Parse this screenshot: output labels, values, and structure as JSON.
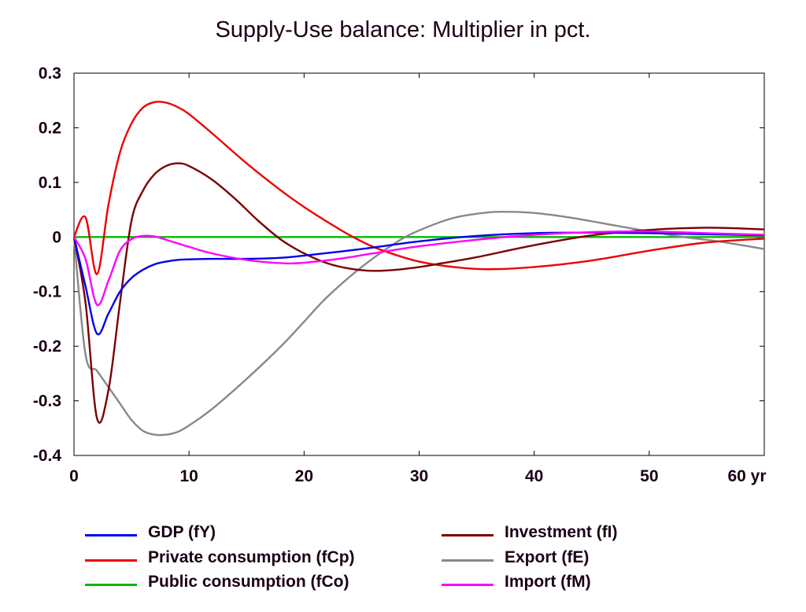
{
  "chart_data": {
    "type": "line",
    "title": "Supply-Use balance: Multiplier in pct.",
    "xlabel": "",
    "ylabel": "",
    "xlim": [
      0,
      60
    ],
    "ylim": [
      -0.4,
      0.3
    ],
    "x_ticks": [
      {
        "value": 0,
        "label": "0"
      },
      {
        "value": 10,
        "label": "10"
      },
      {
        "value": 20,
        "label": "20"
      },
      {
        "value": 30,
        "label": "30"
      },
      {
        "value": 40,
        "label": "40"
      },
      {
        "value": 50,
        "label": "50"
      },
      {
        "value": 60,
        "label": "60 yr"
      }
    ],
    "y_ticks": [
      {
        "value": 0.3,
        "label": "0.3"
      },
      {
        "value": 0.2,
        "label": "0.2"
      },
      {
        "value": 0.1,
        "label": "0.1"
      },
      {
        "value": 0,
        "label": "0"
      },
      {
        "value": -0.1,
        "label": "-0.1"
      },
      {
        "value": -0.2,
        "label": "-0.2"
      },
      {
        "value": -0.3,
        "label": "-0.3"
      },
      {
        "value": -0.4,
        "label": "-0.4"
      }
    ],
    "grid": false,
    "legend_position": "bottom",
    "series": [
      {
        "name": "GDP (fY)",
        "color": "#0000ee",
        "points": [
          [
            0,
            0
          ],
          [
            1,
            -0.09
          ],
          [
            2,
            -0.177
          ],
          [
            3,
            -0.14
          ],
          [
            4,
            -0.1
          ],
          [
            5,
            -0.075
          ],
          [
            6,
            -0.06
          ],
          [
            7,
            -0.05
          ],
          [
            8,
            -0.045
          ],
          [
            9,
            -0.042
          ],
          [
            10,
            -0.041
          ],
          [
            12,
            -0.04
          ],
          [
            15,
            -0.04
          ],
          [
            18,
            -0.038
          ],
          [
            20,
            -0.034
          ],
          [
            25,
            -0.022
          ],
          [
            30,
            -0.008
          ],
          [
            35,
            0.002
          ],
          [
            40,
            0.007
          ],
          [
            45,
            0.008
          ],
          [
            50,
            0.007
          ],
          [
            55,
            0.005
          ],
          [
            60,
            0.003
          ]
        ]
      },
      {
        "name": "Private consumption (fCp)",
        "color": "#ee0000",
        "points": [
          [
            0,
            0
          ],
          [
            1,
            0.036
          ],
          [
            2,
            -0.068
          ],
          [
            3,
            0.06
          ],
          [
            4,
            0.155
          ],
          [
            5,
            0.208
          ],
          [
            6,
            0.237
          ],
          [
            7,
            0.247
          ],
          [
            8,
            0.246
          ],
          [
            9,
            0.238
          ],
          [
            10,
            0.225
          ],
          [
            12,
            0.19
          ],
          [
            15,
            0.135
          ],
          [
            18,
            0.085
          ],
          [
            20,
            0.055
          ],
          [
            22,
            0.028
          ],
          [
            24,
            0.003
          ],
          [
            26,
            -0.018
          ],
          [
            28,
            -0.033
          ],
          [
            30,
            -0.045
          ],
          [
            33,
            -0.055
          ],
          [
            36,
            -0.059
          ],
          [
            40,
            -0.055
          ],
          [
            45,
            -0.043
          ],
          [
            50,
            -0.025
          ],
          [
            55,
            -0.01
          ],
          [
            60,
            -0.003
          ]
        ]
      },
      {
        "name": "Public consumption (fCo)",
        "color": "#00bb00",
        "points": [
          [
            0,
            0
          ],
          [
            60,
            0
          ]
        ]
      },
      {
        "name": "Investment (fI)",
        "color": "#7a0000",
        "points": [
          [
            0,
            0
          ],
          [
            1,
            -0.12
          ],
          [
            2,
            -0.332
          ],
          [
            3,
            -0.28
          ],
          [
            4,
            -0.12
          ],
          [
            5,
            0.03
          ],
          [
            6,
            0.085
          ],
          [
            7,
            0.115
          ],
          [
            8,
            0.13
          ],
          [
            9,
            0.135
          ],
          [
            10,
            0.13
          ],
          [
            12,
            0.105
          ],
          [
            14,
            0.07
          ],
          [
            16,
            0.03
          ],
          [
            18,
            -0.005
          ],
          [
            20,
            -0.03
          ],
          [
            22,
            -0.048
          ],
          [
            24,
            -0.058
          ],
          [
            26,
            -0.062
          ],
          [
            28,
            -0.06
          ],
          [
            30,
            -0.055
          ],
          [
            32,
            -0.048
          ],
          [
            35,
            -0.037
          ],
          [
            40,
            -0.015
          ],
          [
            45,
            0.003
          ],
          [
            50,
            0.013
          ],
          [
            55,
            0.017
          ],
          [
            60,
            0.014
          ]
        ]
      },
      {
        "name": "Export (fE)",
        "color": "#888888",
        "points": [
          [
            0,
            0
          ],
          [
            1,
            -0.215
          ],
          [
            2,
            -0.245
          ],
          [
            3,
            -0.275
          ],
          [
            4,
            -0.305
          ],
          [
            5,
            -0.335
          ],
          [
            6,
            -0.355
          ],
          [
            7,
            -0.362
          ],
          [
            8,
            -0.362
          ],
          [
            9,
            -0.357
          ],
          [
            10,
            -0.345
          ],
          [
            12,
            -0.315
          ],
          [
            15,
            -0.26
          ],
          [
            18,
            -0.2
          ],
          [
            20,
            -0.155
          ],
          [
            22,
            -0.11
          ],
          [
            25,
            -0.055
          ],
          [
            28,
            -0.01
          ],
          [
            30,
            0.012
          ],
          [
            33,
            0.035
          ],
          [
            36,
            0.045
          ],
          [
            38,
            0.046
          ],
          [
            40,
            0.044
          ],
          [
            43,
            0.036
          ],
          [
            46,
            0.025
          ],
          [
            50,
            0.01
          ],
          [
            53,
            0
          ],
          [
            56,
            -0.008
          ],
          [
            60,
            -0.022
          ]
        ]
      },
      {
        "name": "Import (fM)",
        "color": "#ff00ff",
        "points": [
          [
            0,
            0
          ],
          [
            1,
            -0.04
          ],
          [
            2,
            -0.124
          ],
          [
            3,
            -0.08
          ],
          [
            4,
            -0.025
          ],
          [
            5,
            -0.004
          ],
          [
            6,
            0.002
          ],
          [
            7,
            0.001
          ],
          [
            8,
            -0.005
          ],
          [
            10,
            -0.018
          ],
          [
            12,
            -0.03
          ],
          [
            15,
            -0.042
          ],
          [
            18,
            -0.048
          ],
          [
            20,
            -0.047
          ],
          [
            23,
            -0.04
          ],
          [
            26,
            -0.03
          ],
          [
            30,
            -0.017
          ],
          [
            35,
            -0.005
          ],
          [
            40,
            0.004
          ],
          [
            45,
            0.009
          ],
          [
            50,
            0.01
          ],
          [
            55,
            0.007
          ],
          [
            60,
            0.004
          ]
        ]
      }
    ]
  }
}
